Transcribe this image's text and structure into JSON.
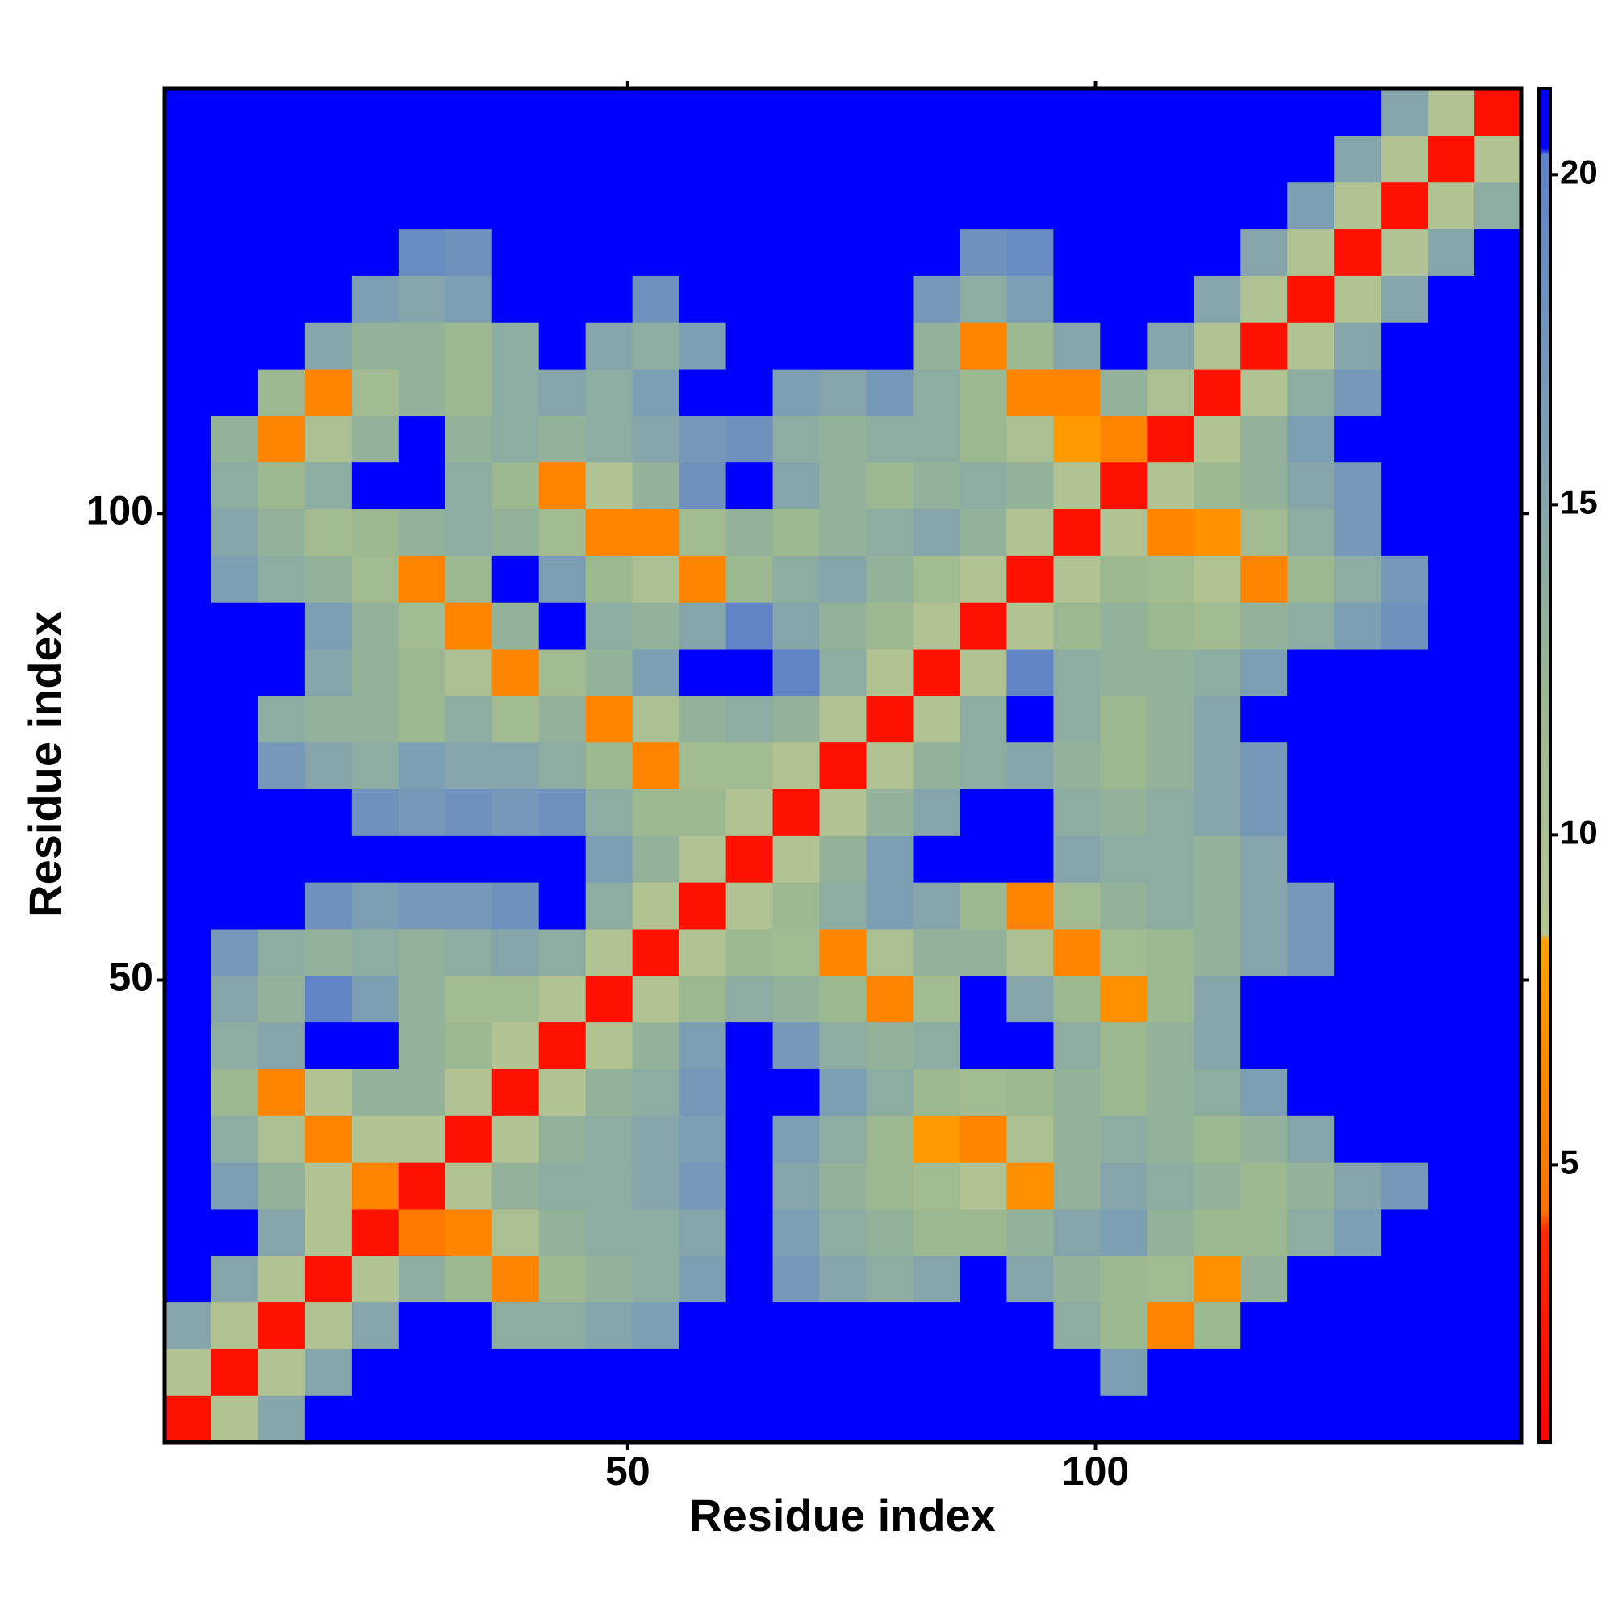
{
  "chart_data": {
    "type": "heatmap",
    "xlabel": "Residue index",
    "ylabel": "Residue index",
    "xlim": [
      0.5,
      145.5
    ],
    "ylim": [
      0.5,
      145.5
    ],
    "xticks": [
      50,
      100
    ],
    "yticks": [
      50,
      100
    ],
    "xbins": [
      0.5,
      5.5,
      10.5,
      15.5,
      20.5,
      25.5,
      30.5,
      35.5,
      40.5,
      45.5,
      50.5,
      55.5,
      60.5,
      65.5,
      70.5,
      75.5,
      80.5,
      85.5,
      90.5,
      95.5,
      100.5,
      105.5,
      110.5,
      115.5,
      120.5,
      125.5,
      130.5,
      135.5,
      140.5,
      145.5
    ],
    "ybins": [
      0.5,
      5.5,
      10.5,
      15.5,
      20.5,
      25.5,
      30.5,
      35.5,
      40.5,
      45.5,
      50.5,
      55.5,
      60.5,
      65.5,
      70.5,
      75.5,
      80.5,
      85.5,
      90.5,
      95.5,
      100.5,
      105.5,
      110.5,
      115.5,
      120.5,
      125.5,
      130.5,
      135.5,
      140.5,
      145.5
    ],
    "z": [
      [
        2,
        9,
        15,
        22,
        22,
        22,
        22,
        22,
        22,
        22,
        22,
        22,
        22,
        22,
        22,
        22,
        22,
        22,
        22,
        22,
        22,
        22,
        22,
        22,
        22,
        22,
        22,
        22,
        22
      ],
      [
        9,
        2,
        9,
        15,
        22,
        22,
        22,
        22,
        22,
        22,
        22,
        22,
        22,
        22,
        22,
        22,
        22,
        22,
        22,
        22,
        16,
        22,
        22,
        22,
        22,
        22,
        22,
        22,
        22
      ],
      [
        15,
        9,
        2,
        9,
        15,
        22,
        22,
        14,
        14,
        15,
        16,
        22,
        22,
        22,
        22,
        22,
        22,
        22,
        22,
        14,
        12,
        6,
        12,
        22,
        22,
        22,
        22,
        22,
        22
      ],
      [
        22,
        15,
        9,
        2,
        9,
        14,
        12,
        6,
        12,
        13,
        14,
        16,
        22,
        17,
        15,
        14,
        15,
        22,
        15,
        13,
        12,
        11,
        7,
        13,
        22,
        22,
        22,
        22,
        22
      ],
      [
        22,
        22,
        15,
        9,
        2,
        5,
        6,
        10,
        13,
        14,
        14,
        15,
        22,
        16,
        14,
        13,
        12,
        12,
        13,
        15,
        16,
        13,
        12,
        12,
        14,
        16,
        22,
        22,
        22
      ],
      [
        22,
        16,
        13,
        9,
        6,
        2,
        9,
        13,
        14,
        14,
        15,
        17,
        22,
        15,
        13,
        12,
        11,
        9,
        7,
        13,
        15,
        14,
        13,
        12,
        13,
        15,
        17,
        22,
        22
      ],
      [
        22,
        14,
        10,
        6,
        9,
        9,
        2,
        9,
        13,
        14,
        15,
        16,
        22,
        16,
        14,
        12,
        8,
        6,
        10,
        13,
        14,
        13,
        12,
        13,
        15,
        22,
        22,
        22,
        22
      ],
      [
        22,
        12,
        6,
        9,
        13,
        13,
        9,
        2,
        9,
        13,
        14,
        17,
        22,
        22,
        16,
        14,
        12,
        11,
        12,
        13,
        12,
        13,
        14,
        16,
        22,
        22,
        22,
        22,
        22
      ],
      [
        22,
        14,
        15,
        22,
        22,
        13,
        12,
        9,
        2,
        9,
        13,
        16,
        22,
        17,
        14,
        13,
        14,
        22,
        22,
        14,
        12,
        13,
        15,
        22,
        22,
        22,
        22,
        22,
        22
      ],
      [
        22,
        15,
        13,
        20,
        16,
        13,
        11,
        11,
        9,
        2,
        9,
        12,
        14,
        13,
        12,
        6,
        11,
        22,
        15,
        12,
        7,
        12,
        15,
        22,
        22,
        22,
        22,
        22,
        22
      ],
      [
        22,
        17,
        14,
        13,
        14,
        13,
        14,
        15,
        14,
        9,
        2,
        9,
        12,
        11,
        6,
        10,
        13,
        13,
        10,
        6,
        11,
        12,
        13,
        15,
        17,
        22,
        22,
        22,
        22
      ],
      [
        22,
        22,
        22,
        18,
        16,
        17,
        17,
        18,
        22,
        14,
        9,
        2,
        9,
        12,
        14,
        16,
        15,
        12,
        6,
        11,
        13,
        14,
        13,
        15,
        17,
        22,
        22,
        22,
        22
      ],
      [
        22,
        22,
        22,
        22,
        22,
        22,
        22,
        22,
        22,
        16,
        13,
        9,
        2,
        9,
        13,
        16,
        22,
        22,
        22,
        15,
        14,
        14,
        13,
        15,
        22,
        22,
        22,
        22,
        22
      ],
      [
        22,
        22,
        22,
        22,
        18,
        17,
        18,
        17,
        18,
        14,
        12,
        12,
        9,
        2,
        9,
        13,
        15,
        22,
        22,
        14,
        13,
        14,
        15,
        17,
        22,
        22,
        22,
        22,
        22
      ],
      [
        22,
        22,
        17,
        15,
        14,
        16,
        15,
        15,
        14,
        12,
        6,
        11,
        11,
        9,
        2,
        9,
        13,
        14,
        15,
        13,
        12,
        13,
        15,
        17,
        22,
        22,
        22,
        22,
        22
      ],
      [
        22,
        22,
        14,
        13,
        13,
        12,
        14,
        11,
        13,
        6,
        10,
        13,
        14,
        13,
        9,
        2,
        9,
        14,
        22,
        14,
        12,
        13,
        15,
        22,
        22,
        22,
        22,
        22,
        22
      ],
      [
        22,
        22,
        22,
        15,
        13,
        12,
        10,
        6,
        11,
        13,
        16,
        22,
        22,
        20,
        14,
        9,
        2,
        9,
        20,
        14,
        13,
        13,
        14,
        16,
        22,
        22,
        22,
        22,
        22
      ],
      [
        22,
        22,
        22,
        16,
        13,
        11,
        6,
        13,
        22,
        14,
        13,
        15,
        20,
        15,
        13,
        12,
        9,
        2,
        9,
        12,
        13,
        12,
        11,
        13,
        14,
        16,
        18,
        22,
        22
      ],
      [
        22,
        16,
        14,
        13,
        11,
        6,
        12,
        22,
        16,
        12,
        10,
        6,
        12,
        14,
        15,
        13,
        11,
        9,
        2,
        9,
        12,
        11,
        9,
        6,
        12,
        14,
        17,
        22,
        22
      ],
      [
        22,
        15,
        13,
        11,
        12,
        13,
        14,
        13,
        11,
        6,
        6,
        11,
        13,
        12,
        13,
        14,
        15,
        13,
        9,
        2,
        9,
        6,
        7,
        11,
        14,
        17,
        22,
        22,
        22
      ],
      [
        22,
        14,
        12,
        14,
        22,
        22,
        14,
        12,
        6,
        9,
        13,
        18,
        22,
        15,
        13,
        12,
        13,
        14,
        13,
        9,
        2,
        9,
        12,
        13,
        15,
        17,
        22,
        22,
        22
      ],
      [
        22,
        13,
        6,
        10,
        13,
        22,
        13,
        14,
        13,
        14,
        15,
        17,
        18,
        14,
        13,
        14,
        14,
        12,
        10,
        8,
        6,
        2,
        9,
        13,
        16,
        22,
        22,
        22,
        22
      ],
      [
        22,
        22,
        12,
        6,
        11,
        13,
        12,
        14,
        15,
        14,
        16,
        22,
        22,
        16,
        15,
        17,
        14,
        12,
        6,
        6,
        13,
        10,
        2,
        9,
        14,
        17,
        22,
        22,
        22
      ],
      [
        22,
        22,
        22,
        15,
        13,
        13,
        12,
        14,
        22,
        15,
        14,
        16,
        22,
        22,
        22,
        22,
        13,
        6,
        12,
        15,
        22,
        15,
        9,
        2,
        9,
        15,
        22,
        22,
        22
      ],
      [
        22,
        22,
        22,
        22,
        16,
        15,
        16,
        22,
        22,
        22,
        18,
        22,
        22,
        22,
        22,
        22,
        17,
        14,
        16,
        22,
        22,
        22,
        15,
        9,
        2,
        9,
        15,
        22,
        22
      ],
      [
        22,
        22,
        22,
        22,
        22,
        19,
        18,
        22,
        22,
        22,
        22,
        22,
        22,
        22,
        22,
        22,
        22,
        18,
        19,
        22,
        22,
        22,
        22,
        15,
        9,
        2,
        9,
        15,
        22
      ],
      [
        22,
        22,
        22,
        22,
        22,
        22,
        22,
        22,
        22,
        22,
        22,
        22,
        22,
        22,
        22,
        22,
        22,
        22,
        22,
        22,
        22,
        22,
        22,
        22,
        16,
        9,
        2,
        9,
        14
      ],
      [
        22,
        22,
        22,
        22,
        22,
        22,
        22,
        22,
        22,
        22,
        22,
        22,
        22,
        22,
        22,
        22,
        22,
        22,
        22,
        22,
        22,
        22,
        22,
        22,
        22,
        15,
        9,
        2,
        9
      ],
      [
        22,
        22,
        22,
        22,
        22,
        22,
        22,
        22,
        22,
        22,
        22,
        22,
        22,
        22,
        22,
        22,
        22,
        22,
        22,
        22,
        22,
        22,
        22,
        22,
        22,
        22,
        15,
        9,
        2
      ]
    ],
    "colorscale": [
      [
        0.8,
        "#ff0000"
      ],
      [
        4.0,
        "#ff2a00"
      ],
      [
        4.3,
        "#ff7000"
      ],
      [
        8.4,
        "#ffa000"
      ],
      [
        8.5,
        "#b4c494"
      ],
      [
        12,
        "#9cb890"
      ],
      [
        16,
        "#7d9fb4"
      ],
      [
        20.3,
        "#5f82c8"
      ],
      [
        20.4,
        "#0000ff"
      ],
      [
        21.3,
        "#0000ff"
      ]
    ],
    "colorbar": {
      "lim": [
        0.8,
        21.3
      ],
      "ticks": [
        5,
        10,
        15,
        20
      ]
    }
  }
}
